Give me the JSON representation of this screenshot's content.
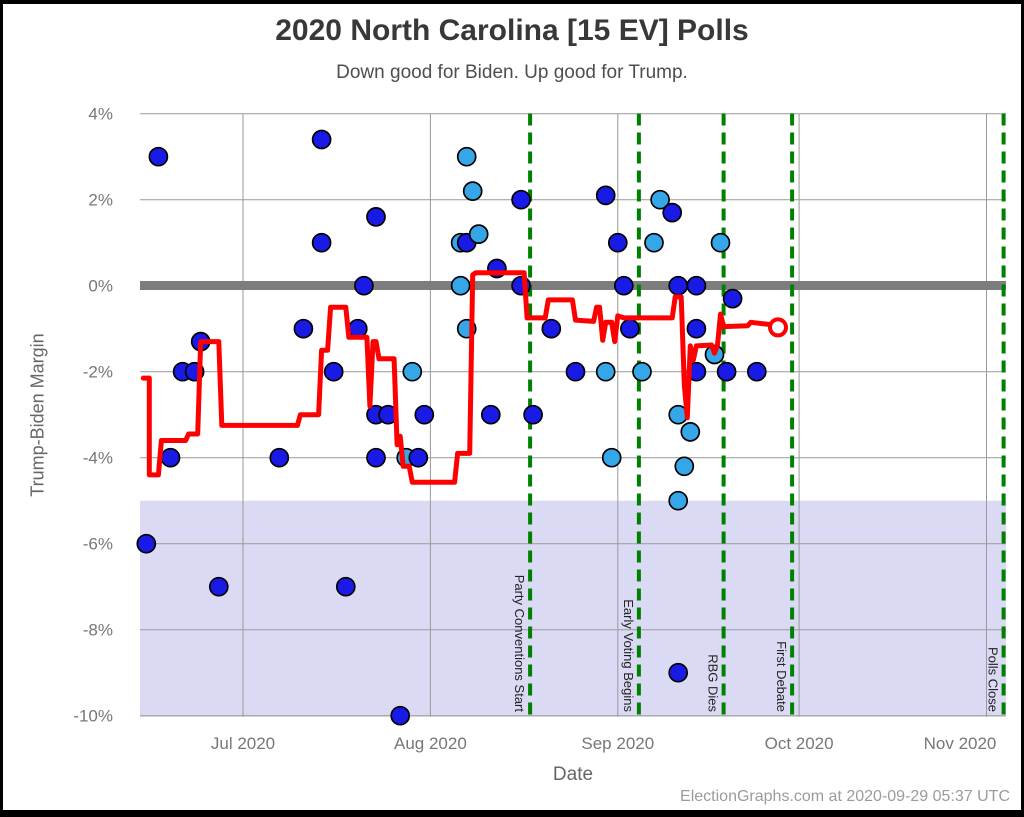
{
  "page": {
    "footer": "ElectionGraphs.com at 2020-09-29 05:37 UTC"
  },
  "colors": {
    "avg_line": "#ff0000",
    "poll_dark": "#1a1ae6",
    "poll_light": "#35a7e8",
    "event_line": "#008000",
    "zero_band": "#7d7d7d",
    "biden_band": "#dadaf5",
    "grid": "#999999",
    "tick_text": "#777777",
    "event_text": "#222222"
  },
  "chart_data": {
    "type": "scatter",
    "title": "2020 North Carolina [15 EV] Polls",
    "subtitle": "Down good for Biden. Up good for Trump.",
    "xlabel": "Date",
    "ylabel": "Trump-Biden Margin",
    "ylim": [
      -10.1,
      4.05
    ],
    "xlim": [
      "2020-06-14",
      "2020-11-05"
    ],
    "grid": true,
    "y_ticks": [
      {
        "label": "4%",
        "value": 4
      },
      {
        "label": "2%",
        "value": 2
      },
      {
        "label": "0%",
        "value": 0
      },
      {
        "label": "-2%",
        "value": -2
      },
      {
        "label": "-4%",
        "value": -4
      },
      {
        "label": "-6%",
        "value": -6
      },
      {
        "label": "-8%",
        "value": -8
      },
      {
        "label": "-10%",
        "value": -10
      }
    ],
    "x_ticks": [
      {
        "label": "Jul 2020",
        "date": "2020-07-01"
      },
      {
        "label": "Aug 2020",
        "date": "2020-08-01"
      },
      {
        "label": "Sep 2020",
        "date": "2020-09-01"
      },
      {
        "label": "Oct 2020",
        "date": "2020-10-01"
      },
      {
        "label": "Nov 2020",
        "date": "2020-11-01",
        "label_x": 960
      }
    ],
    "events": [
      {
        "label": "Party Conventions Start",
        "date": "2020-08-17T12:00"
      },
      {
        "label": "Early Voting Begins",
        "date": "2020-09-04T12:00"
      },
      {
        "label": "RBG Dies",
        "date": "2020-09-18T12:00"
      },
      {
        "label": "First Debate",
        "date": "2020-09-29T20:00"
      },
      {
        "label": "Polls Close",
        "date": "2020-11-03T20:00"
      }
    ],
    "zero_band": {
      "from": -0.1,
      "to": 0.1
    },
    "biden_lead_band": {
      "from": -5,
      "to": -10.1
    },
    "poll_series": [
      {
        "name": "poll-dot-dark",
        "color": "#1a1ae6",
        "points": [
          [
            "2020-06-15",
            -6
          ],
          [
            "2020-06-17",
            3
          ],
          [
            "2020-06-19",
            -4
          ],
          [
            "2020-06-21",
            -2
          ],
          [
            "2020-06-23",
            -2
          ],
          [
            "2020-06-24",
            -1.3
          ],
          [
            "2020-06-27",
            -7
          ],
          [
            "2020-07-07",
            -4
          ],
          [
            "2020-07-11",
            -1
          ],
          [
            "2020-07-14",
            3.4
          ],
          [
            "2020-07-14",
            1
          ],
          [
            "2020-07-16",
            -2
          ],
          [
            "2020-07-18",
            -7
          ],
          [
            "2020-07-20",
            -1
          ],
          [
            "2020-07-21",
            0
          ],
          [
            "2020-07-23",
            1.6
          ],
          [
            "2020-07-23",
            -3
          ],
          [
            "2020-07-23",
            -4
          ],
          [
            "2020-07-25",
            -3
          ],
          [
            "2020-07-27",
            -10
          ],
          [
            "2020-07-30",
            -4
          ],
          [
            "2020-07-31",
            -3
          ],
          [
            "2020-08-07",
            1
          ],
          [
            "2020-08-11",
            -3
          ],
          [
            "2020-08-12",
            0.4
          ],
          [
            "2020-08-16",
            2
          ],
          [
            "2020-08-16",
            0
          ],
          [
            "2020-08-18",
            -3
          ],
          [
            "2020-08-21",
            -1
          ],
          [
            "2020-08-25",
            -2
          ],
          [
            "2020-08-30",
            2.1
          ],
          [
            "2020-09-01",
            1
          ],
          [
            "2020-09-02",
            0
          ],
          [
            "2020-09-03",
            -1
          ],
          [
            "2020-09-10",
            1.7
          ],
          [
            "2020-09-11",
            0
          ],
          [
            "2020-09-11",
            -9
          ],
          [
            "2020-09-14",
            0
          ],
          [
            "2020-09-14",
            -1
          ],
          [
            "2020-09-14",
            -2
          ],
          [
            "2020-09-19",
            -2
          ],
          [
            "2020-09-20",
            -0.3
          ],
          [
            "2020-09-24",
            -2
          ]
        ]
      },
      {
        "name": "poll-dot-light",
        "color": "#35a7e8",
        "points": [
          [
            "2020-07-28",
            -4
          ],
          [
            "2020-07-29",
            -2
          ],
          [
            "2020-08-06",
            1
          ],
          [
            "2020-08-06",
            0
          ],
          [
            "2020-08-07",
            3
          ],
          [
            "2020-08-07",
            -1
          ],
          [
            "2020-08-08",
            2.2
          ],
          [
            "2020-08-09",
            1.2
          ],
          [
            "2020-08-30",
            -2
          ],
          [
            "2020-08-31",
            -4
          ],
          [
            "2020-09-05",
            -2
          ],
          [
            "2020-09-07",
            1
          ],
          [
            "2020-09-08",
            2
          ],
          [
            "2020-09-11",
            -3
          ],
          [
            "2020-09-11",
            -5
          ],
          [
            "2020-09-12",
            -4.2
          ],
          [
            "2020-09-13",
            -3.4
          ],
          [
            "2020-09-17",
            -1.6
          ],
          [
            "2020-09-18",
            1
          ]
        ]
      }
    ],
    "average": {
      "name": "poll-average",
      "color": "#ff0000",
      "points": [
        [
          "2020-06-14T12:00",
          -2.15
        ],
        [
          "2020-06-15T12:00",
          -2.15
        ],
        [
          "2020-06-15T12:00",
          -4.4
        ],
        [
          "2020-06-17",
          -4.4
        ],
        [
          "2020-06-17T12:00",
          -3.6
        ],
        [
          "2020-06-21T12:00",
          -3.6
        ],
        [
          "2020-06-22",
          -3.45
        ],
        [
          "2020-06-23T12:00",
          -3.45
        ],
        [
          "2020-06-24",
          -1.3
        ],
        [
          "2020-06-27",
          -1.3
        ],
        [
          "2020-06-27T12:00",
          -3.25
        ],
        [
          "2020-07-10",
          -3.25
        ],
        [
          "2020-07-10T12:00",
          -3.0
        ],
        [
          "2020-07-13T12:00",
          -3.0
        ],
        [
          "2020-07-14",
          -1.5
        ],
        [
          "2020-07-15",
          -1.5
        ],
        [
          "2020-07-15T12:00",
          -0.5
        ],
        [
          "2020-07-18",
          -0.5
        ],
        [
          "2020-07-18T12:00",
          -1.2
        ],
        [
          "2020-07-21T12:00",
          -1.2
        ],
        [
          "2020-07-22",
          -2.8
        ],
        [
          "2020-07-22T12:00",
          -1.3
        ],
        [
          "2020-07-23",
          -1.3
        ],
        [
          "2020-07-23T12:00",
          -1.7
        ],
        [
          "2020-07-26",
          -1.7
        ],
        [
          "2020-07-26T12:00",
          -3.7
        ],
        [
          "2020-07-27",
          -3.5
        ],
        [
          "2020-07-27T12:00",
          -4.2
        ],
        [
          "2020-07-28T12:00",
          -4.2
        ],
        [
          "2020-07-29",
          -4.57
        ],
        [
          "2020-08-05",
          -4.57
        ],
        [
          "2020-08-05T12:00",
          -3.9
        ],
        [
          "2020-08-07T12:00",
          -3.9
        ],
        [
          "2020-08-08",
          0.25
        ],
        [
          "2020-08-08T12:00",
          0.3
        ],
        [
          "2020-08-16T12:00",
          0.3
        ],
        [
          "2020-08-17",
          -0.75
        ],
        [
          "2020-08-20",
          -0.75
        ],
        [
          "2020-08-20T12:00",
          -0.33
        ],
        [
          "2020-08-24T12:00",
          -0.33
        ],
        [
          "2020-08-25",
          -0.8
        ],
        [
          "2020-08-28",
          -0.83
        ],
        [
          "2020-08-28T12:00",
          -0.5
        ],
        [
          "2020-08-29",
          -0.5
        ],
        [
          "2020-08-29T12:00",
          -1.27
        ],
        [
          "2020-08-30",
          -0.85
        ],
        [
          "2020-08-31",
          -0.85
        ],
        [
          "2020-08-31T12:00",
          -1.3
        ],
        [
          "2020-09-01",
          -0.7
        ],
        [
          "2020-09-02",
          -0.75
        ],
        [
          "2020-09-10",
          -0.75
        ],
        [
          "2020-09-10T12:00",
          -0.26
        ],
        [
          "2020-09-11T12:00",
          -0.26
        ],
        [
          "2020-09-12",
          -2.3
        ],
        [
          "2020-09-12T12:00",
          -3.07
        ],
        [
          "2020-09-13",
          -1.4
        ],
        [
          "2020-09-13T12:00",
          -1.73
        ],
        [
          "2020-09-14",
          -1.4
        ],
        [
          "2020-09-16T12:00",
          -1.38
        ],
        [
          "2020-09-17",
          -1.57
        ],
        [
          "2020-09-17T12:00",
          -1.38
        ],
        [
          "2020-09-18",
          -0.66
        ],
        [
          "2020-09-18T12:00",
          -0.95
        ],
        [
          "2020-09-22T12:00",
          -0.93
        ],
        [
          "2020-09-23",
          -0.85
        ],
        [
          "2020-09-26",
          -0.9
        ],
        [
          "2020-09-27T12:00",
          -0.97
        ]
      ],
      "end_marker": {
        "date": "2020-09-27T12:00",
        "value": -0.97
      }
    }
  }
}
